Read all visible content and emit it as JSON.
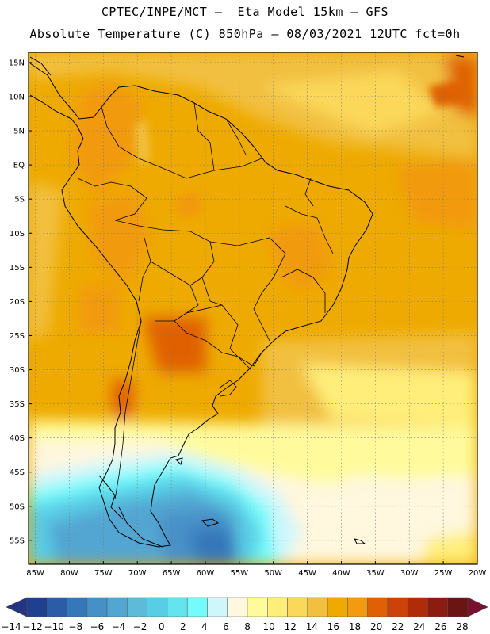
{
  "header": {
    "title_line1": "CPTEC/INPE/MCT –  Eta Model 15km – GFS",
    "title_line2": "Absolute Temperature (C) 850hPa – 08/03/2021 12UTC fct=0h"
  },
  "map": {
    "lat_ticks": [
      "15N",
      "10N",
      "5N",
      "EQ",
      "5S",
      "10S",
      "15S",
      "20S",
      "25S",
      "30S",
      "35S",
      "40S",
      "45S",
      "50S",
      "55S"
    ],
    "lon_ticks": [
      "85W",
      "80W",
      "75W",
      "70W",
      "65W",
      "60W",
      "55W",
      "50W",
      "45W",
      "40W",
      "35W",
      "30W",
      "25W",
      "20W"
    ],
    "grid_lines": true
  },
  "colorbar": {
    "labels": [
      "-14",
      "-12",
      "-10",
      "-8",
      "-6",
      "-4",
      "-2",
      "0",
      "2",
      "4",
      "6",
      "8",
      "10",
      "12",
      "14",
      "16",
      "18",
      "20",
      "22",
      "24",
      "26",
      "28"
    ],
    "colors": [
      "#1f3f8f",
      "#2a5ca8",
      "#3677ba",
      "#4690c8",
      "#52a6d2",
      "#5dbad8",
      "#58cde6",
      "#64e4ee",
      "#74fbfb",
      "#cff7fb",
      "#fff7de",
      "#fffb9c",
      "#ffee7a",
      "#fbd85a",
      "#f2c040",
      "#eeaa00",
      "#f29a10",
      "#e06005",
      "#cd4208",
      "#b02c08",
      "#8c1c10",
      "#6a1414"
    ],
    "min_color": "#233482",
    "max_color": "#7a0f30"
  }
}
